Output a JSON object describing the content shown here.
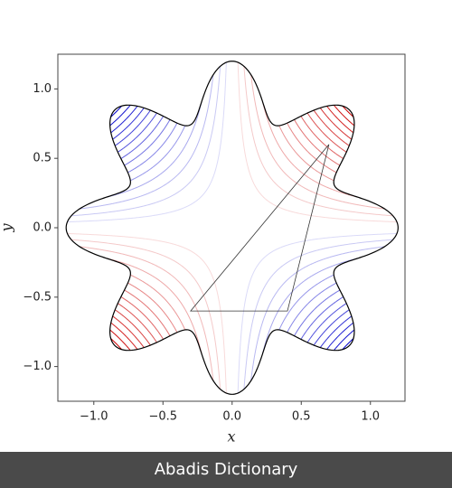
{
  "chart_data": {
    "type": "contour",
    "xlabel": "x",
    "ylabel": "y",
    "xlim": [
      -1.26,
      1.25
    ],
    "ylim": [
      -1.25,
      1.25
    ],
    "xticks": [
      {
        "value": -1,
        "label": "−1.0"
      },
      {
        "value": -0.5,
        "label": "−0.5"
      },
      {
        "value": 0,
        "label": "0.0"
      },
      {
        "value": 0.5,
        "label": "0.5"
      },
      {
        "value": 1,
        "label": "1.0"
      }
    ],
    "yticks": [
      {
        "value": -1,
        "label": "−1.0"
      },
      {
        "value": -0.5,
        "label": "−0.5"
      },
      {
        "value": 0,
        "label": "0.0"
      },
      {
        "value": 0.5,
        "label": "0.5"
      },
      {
        "value": 1,
        "label": "1.0"
      }
    ],
    "boundary": {
      "radius": 1,
      "amplitude": 0.2,
      "lobes": 8
    },
    "levels": [
      -0.7,
      -0.65,
      -0.6,
      -0.55,
      -0.5,
      -0.45,
      -0.4,
      -0.35,
      -0.3,
      -0.25,
      -0.2,
      -0.15,
      -0.1,
      -0.05,
      0.05,
      0.1,
      0.15,
      0.2,
      0.25,
      0.3,
      0.35,
      0.4,
      0.45,
      0.5,
      0.55,
      0.6,
      0.65,
      0.7
    ],
    "negative_color": "#0000cc",
    "positive_color": "#cc0000",
    "triangle": {
      "x": [
        0.7,
        -0.3,
        0.4
      ],
      "y": [
        0.6,
        -0.6,
        -0.6
      ],
      "color": "#333333"
    }
  },
  "footer": {
    "text": "Abadis Dictionary"
  }
}
